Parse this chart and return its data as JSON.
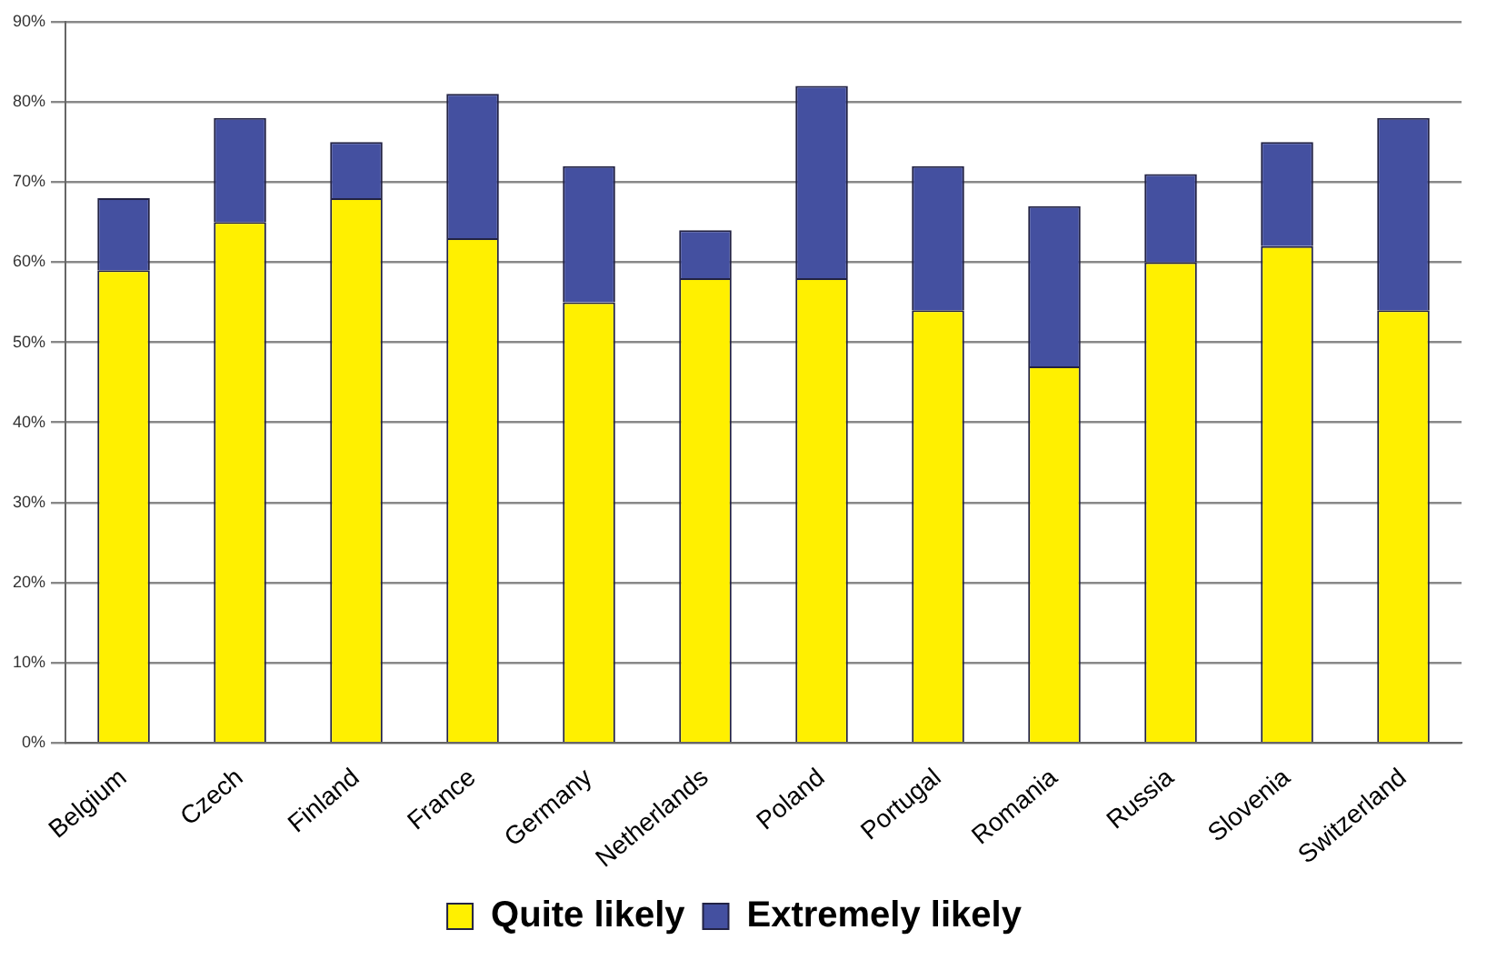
{
  "chart_data": {
    "type": "bar",
    "stacked": true,
    "categories": [
      "Belgium",
      "Czech",
      "Finland",
      "France",
      "Germany",
      "Netherlands",
      "Poland",
      "Portugal",
      "Romania",
      "Russia",
      "Slovenia",
      "Switzerland"
    ],
    "series": [
      {
        "name": "Quite likely",
        "color": "#fff000",
        "values": [
          59,
          65,
          68,
          63,
          55,
          58,
          58,
          54,
          47,
          60,
          62,
          54
        ]
      },
      {
        "name": "Extremely likely",
        "color": "#4450a0",
        "values": [
          9,
          13,
          7,
          18,
          17,
          6,
          24,
          18,
          20,
          11,
          13,
          24
        ]
      }
    ],
    "ylim": [
      0,
      90
    ],
    "yticks": [
      {
        "value": 0,
        "label": "0%"
      },
      {
        "value": 10,
        "label": "10%"
      },
      {
        "value": 20,
        "label": "20%"
      },
      {
        "value": 30,
        "label": "30%"
      },
      {
        "value": 40,
        "label": "40%"
      },
      {
        "value": 50,
        "label": "50%"
      },
      {
        "value": 60,
        "label": "60%"
      },
      {
        "value": 70,
        "label": "70%"
      },
      {
        "value": 80,
        "label": "80%"
      },
      {
        "value": 90,
        "label": "90%"
      }
    ],
    "grid": "y",
    "legend": "bottom"
  }
}
